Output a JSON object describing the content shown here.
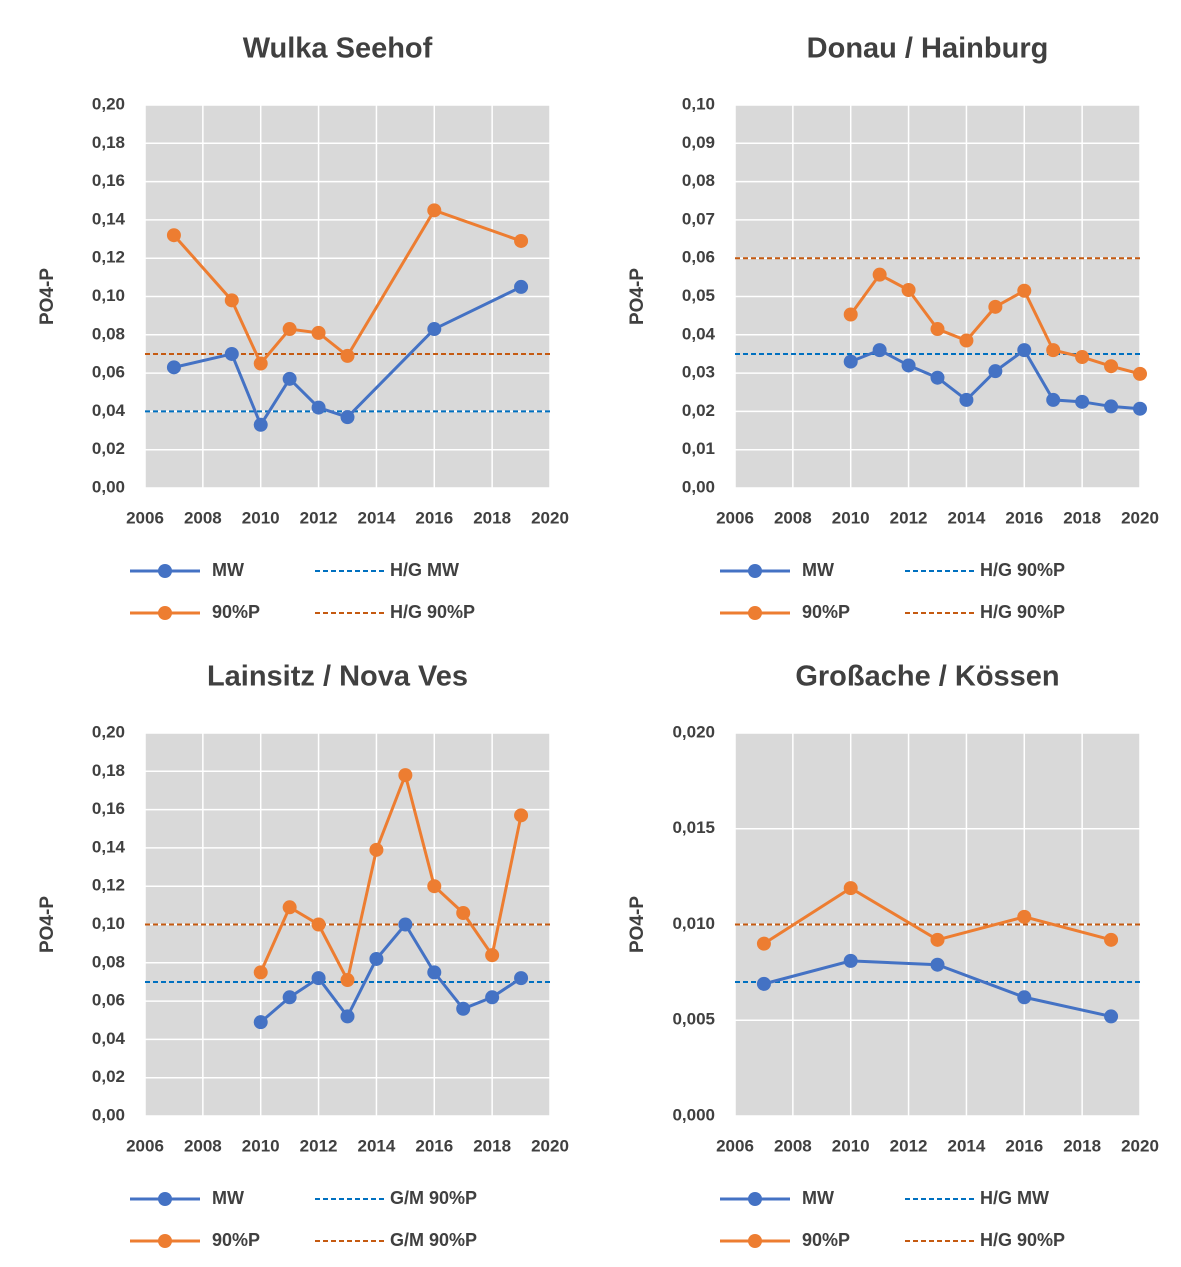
{
  "chart_data": [
    {
      "type": "line",
      "title": "Wulka  Seehof",
      "ylabel": "PO4-P",
      "xlim": [
        2006,
        2020
      ],
      "xticks": [
        2006,
        2008,
        2010,
        2012,
        2014,
        2016,
        2018,
        2020
      ],
      "ylim": [
        0,
        0.2
      ],
      "yticks": [
        {
          "value": 0,
          "label": "0,00"
        },
        {
          "value": 0.02,
          "label": "0,02"
        },
        {
          "value": 0.04,
          "label": "0,04"
        },
        {
          "value": 0.06,
          "label": "0,06"
        },
        {
          "value": 0.08,
          "label": "0,08"
        },
        {
          "value": 0.1,
          "label": "0,10"
        },
        {
          "value": 0.12,
          "label": "0,12"
        },
        {
          "value": 0.14,
          "label": "0,14"
        },
        {
          "value": 0.16,
          "label": "0,16"
        },
        {
          "value": 0.18,
          "label": "0,18"
        },
        {
          "value": 0.2,
          "label": "0,20"
        }
      ],
      "grid": true,
      "series": [
        {
          "name": "MW",
          "color": "#4472c4",
          "x": [
            2007,
            2009,
            2010,
            2011,
            2012,
            2013,
            2016,
            2019
          ],
          "values": [
            0.063,
            0.07,
            0.033,
            0.057,
            0.042,
            0.037,
            0.083,
            0.105
          ]
        },
        {
          "name": "90%P",
          "color": "#ed7d31",
          "x": [
            2007,
            2009,
            2010,
            2011,
            2012,
            2013,
            2016,
            2019
          ],
          "values": [
            0.132,
            0.098,
            0.065,
            0.083,
            0.081,
            0.069,
            0.145,
            0.129
          ]
        }
      ],
      "reference_lines": [
        {
          "name": "H/G MW",
          "color": "#0070c0",
          "value": 0.04
        },
        {
          "name": "H/G 90%P",
          "color": "#c55a11",
          "value": 0.07
        }
      ]
    },
    {
      "type": "line",
      "title": "Donau / Hainburg",
      "ylabel": "PO4-P",
      "xlim": [
        2006,
        2020
      ],
      "xticks": [
        2006,
        2008,
        2010,
        2012,
        2014,
        2016,
        2018,
        2020
      ],
      "ylim": [
        0,
        0.1
      ],
      "yticks": [
        {
          "value": 0,
          "label": "0,00"
        },
        {
          "value": 0.01,
          "label": "0,01"
        },
        {
          "value": 0.02,
          "label": "0,02"
        },
        {
          "value": 0.03,
          "label": "0,03"
        },
        {
          "value": 0.04,
          "label": "0,04"
        },
        {
          "value": 0.05,
          "label": "0,05"
        },
        {
          "value": 0.06,
          "label": "0,06"
        },
        {
          "value": 0.07,
          "label": "0,07"
        },
        {
          "value": 0.08,
          "label": "0,08"
        },
        {
          "value": 0.09,
          "label": "0,09"
        },
        {
          "value": 0.1,
          "label": "0,10"
        }
      ],
      "grid": true,
      "series": [
        {
          "name": "MW",
          "color": "#4472c4",
          "x": [
            2010,
            2011,
            2012,
            2013,
            2014,
            2015,
            2016,
            2017,
            2018,
            2019,
            2020
          ],
          "values": [
            0.033,
            0.036,
            0.032,
            0.0288,
            0.023,
            0.0305,
            0.036,
            0.023,
            0.0225,
            0.0213,
            0.0207
          ]
        },
        {
          "name": "90%P",
          "color": "#ed7d31",
          "x": [
            2010,
            2011,
            2012,
            2013,
            2014,
            2015,
            2016,
            2017,
            2018,
            2019,
            2020
          ],
          "values": [
            0.0453,
            0.0557,
            0.0517,
            0.0415,
            0.0385,
            0.0473,
            0.0515,
            0.036,
            0.0342,
            0.0318,
            0.0298
          ]
        }
      ],
      "reference_lines": [
        {
          "name": "H/G 90%P",
          "color": "#0070c0",
          "value": 0.035
        },
        {
          "name": "H/G 90%P",
          "color": "#c55a11",
          "value": 0.06
        }
      ]
    },
    {
      "type": "line",
      "title": "Lainsitz / Nova Ves",
      "ylabel": "PO4-P",
      "xlim": [
        2006,
        2020
      ],
      "xticks": [
        2006,
        2008,
        2010,
        2012,
        2014,
        2016,
        2018,
        2020
      ],
      "ylim": [
        0,
        0.2
      ],
      "yticks": [
        {
          "value": 0,
          "label": "0,00"
        },
        {
          "value": 0.02,
          "label": "0,02"
        },
        {
          "value": 0.04,
          "label": "0,04"
        },
        {
          "value": 0.06,
          "label": "0,06"
        },
        {
          "value": 0.08,
          "label": "0,08"
        },
        {
          "value": 0.1,
          "label": "0,10"
        },
        {
          "value": 0.12,
          "label": "0,12"
        },
        {
          "value": 0.14,
          "label": "0,14"
        },
        {
          "value": 0.16,
          "label": "0,16"
        },
        {
          "value": 0.18,
          "label": "0,18"
        },
        {
          "value": 0.2,
          "label": "0,20"
        }
      ],
      "grid": true,
      "series": [
        {
          "name": "MW",
          "color": "#4472c4",
          "x": [
            2010,
            2011,
            2012,
            2013,
            2014,
            2015,
            2016,
            2017,
            2018,
            2019
          ],
          "values": [
            0.049,
            0.062,
            0.072,
            0.052,
            0.082,
            0.1,
            0.075,
            0.056,
            0.062,
            0.072
          ]
        },
        {
          "name": "90%P",
          "color": "#ed7d31",
          "x": [
            2010,
            2011,
            2012,
            2013,
            2014,
            2015,
            2016,
            2017,
            2018,
            2019
          ],
          "values": [
            0.075,
            0.109,
            0.1,
            0.071,
            0.139,
            0.178,
            0.12,
            0.106,
            0.084,
            0.157
          ]
        }
      ],
      "reference_lines": [
        {
          "name": "G/M 90%P",
          "color": "#0070c0",
          "value": 0.07
        },
        {
          "name": "G/M 90%P",
          "color": "#c55a11",
          "value": 0.1
        }
      ]
    },
    {
      "type": "line",
      "title": "Großache / Kössen",
      "ylabel": "PO4-P",
      "xlim": [
        2006,
        2020
      ],
      "xticks": [
        2006,
        2008,
        2010,
        2012,
        2014,
        2016,
        2018,
        2020
      ],
      "ylim": [
        0,
        0.02
      ],
      "yticks": [
        {
          "value": 0,
          "label": "0,000"
        },
        {
          "value": 0.005,
          "label": "0,005"
        },
        {
          "value": 0.01,
          "label": "0,010"
        },
        {
          "value": 0.015,
          "label": "0,015"
        },
        {
          "value": 0.02,
          "label": "0,020"
        }
      ],
      "grid": true,
      "series": [
        {
          "name": "MW",
          "color": "#4472c4",
          "x": [
            2007,
            2010,
            2013,
            2016,
            2019
          ],
          "values": [
            0.0069,
            0.0081,
            0.0079,
            0.0062,
            0.0052
          ]
        },
        {
          "name": "90%P",
          "color": "#ed7d31",
          "x": [
            2007,
            2010,
            2013,
            2016,
            2019
          ],
          "values": [
            0.009,
            0.0119,
            0.0092,
            0.0104,
            0.0092
          ]
        }
      ],
      "reference_lines": [
        {
          "name": "H/G MW",
          "color": "#0070c0",
          "value": 0.007
        },
        {
          "name": "H/G 90%P",
          "color": "#c55a11",
          "value": 0.01
        }
      ]
    }
  ]
}
